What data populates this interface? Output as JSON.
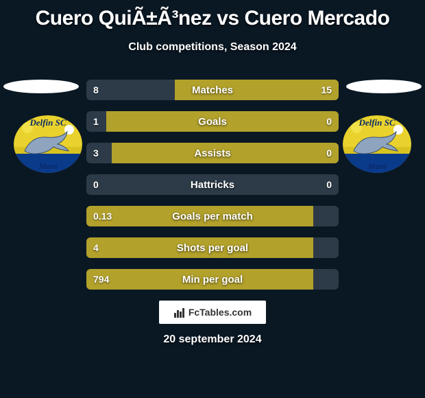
{
  "title": "Cuero QuiÃ±Ã³nez vs Cuero Mercado",
  "subtitle": "Club competitions, Season 2024",
  "date": "20 september 2024",
  "brand": {
    "text": "FcTables.com"
  },
  "colors": {
    "background": "#0a1824",
    "bar_dark": "#2d3b48",
    "bar_olive": "#b2a12b",
    "text": "#ffffff"
  },
  "badges": {
    "left": {
      "top_text": "Delfin SC",
      "bottom_text": "Mant",
      "sky": "#e9d22d",
      "water": "#0a3a8a",
      "band": "#d9c321",
      "sun": "#f3e14a",
      "ball": "#ffffff"
    },
    "right": {
      "top_text": "Delfin SC",
      "bottom_text": "Mant",
      "sky": "#e9d22d",
      "water": "#0a3a8a",
      "band": "#d9c321",
      "sun": "#f3e14a",
      "ball": "#ffffff"
    }
  },
  "bars": {
    "height": 30,
    "gap": 16,
    "radius": 6,
    "label_fontsize": 15,
    "num_fontsize": 14,
    "rows": [
      {
        "label": "Matches",
        "left_val": "8",
        "right_val": "15",
        "left_pct": 35,
        "right_pct": 65
      },
      {
        "label": "Goals",
        "left_val": "1",
        "right_val": "0",
        "left_pct": 78,
        "right_pct": 22
      },
      {
        "label": "Assists",
        "left_val": "3",
        "right_val": "0",
        "left_pct": 72,
        "right_pct": 28
      },
      {
        "label": "Hattricks",
        "left_val": "0",
        "right_val": "0",
        "left_pct": 50,
        "right_pct": 50
      },
      {
        "label": "Goals per match",
        "left_val": "0.13",
        "right_val": "",
        "left_pct": 90,
        "right_pct": 10
      },
      {
        "label": "Shots per goal",
        "left_val": "4",
        "right_val": "",
        "left_pct": 90,
        "right_pct": 10
      },
      {
        "label": "Min per goal",
        "left_val": "794",
        "right_val": "",
        "left_pct": 90,
        "right_pct": 10
      }
    ]
  }
}
